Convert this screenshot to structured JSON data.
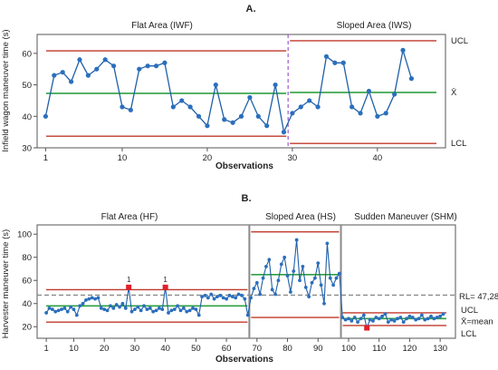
{
  "chart_data": [
    {
      "type": "line",
      "title": "A.",
      "xlabel": "Observations",
      "ylabel": "Infield wagon maneuver time (s)",
      "xlim": [
        0,
        48
      ],
      "ylim": [
        30,
        66
      ],
      "xticks": [
        1,
        10,
        20,
        30,
        40
      ],
      "yticks": [
        30,
        40,
        50,
        60
      ],
      "regions": [
        {
          "label": "Flat Area (IWF)",
          "x_start": 0,
          "x_end": 29.5,
          "ucl": 60.8,
          "center": 47.3,
          "lcl": 33.7
        },
        {
          "label": "Sloped Area (IWS)",
          "x_start": 29.5,
          "x_end": 48,
          "ucl": 64.0,
          "center": 47.6,
          "lcl": 31.4
        }
      ],
      "divider_x": 29.5,
      "limit_labels": {
        "ucl": "UCL",
        "center": "X̄",
        "lcl": "LCL"
      },
      "series": [
        {
          "x": [
            1,
            2,
            3,
            4,
            5,
            6,
            7,
            8,
            9,
            10,
            11,
            12,
            13,
            14,
            15,
            16,
            17,
            18,
            19,
            20,
            21,
            22,
            23,
            24,
            25,
            26,
            27,
            28,
            29,
            30,
            31,
            32,
            33,
            34,
            35,
            36,
            37,
            38,
            39,
            40,
            41,
            42,
            43,
            44
          ],
          "values": [
            40,
            53,
            54,
            51,
            58,
            53,
            55,
            58,
            56,
            43,
            42,
            55,
            56,
            56,
            57,
            43,
            45,
            43,
            40,
            37,
            50,
            39,
            38,
            40,
            46,
            40,
            37,
            50,
            35,
            41,
            43,
            45,
            43,
            59,
            57,
            57,
            43,
            41,
            48,
            40,
            41,
            47,
            61,
            52
          ]
        }
      ]
    },
    {
      "type": "line",
      "title": "B.",
      "xlabel": "Observations",
      "ylabel": "Harvester maneuver time (s)",
      "xlim": [
        -2,
        135
      ],
      "ylim": [
        10,
        108
      ],
      "xticks": [
        1,
        10,
        20,
        30,
        40,
        50,
        60,
        70,
        80,
        90,
        100,
        110,
        120,
        130
      ],
      "yticks": [
        20,
        40,
        60,
        80,
        100
      ],
      "regions": [
        {
          "label": "Flat Area (HF)",
          "x_start": -2,
          "x_end": 67.5,
          "ucl": 52,
          "center": 38,
          "lcl": 24
        },
        {
          "label": "Sloped Area (HS)",
          "x_start": 67.5,
          "x_end": 97.5,
          "ucl": 102,
          "center": 65,
          "lcl": 28
        },
        {
          "label": "Sudden Maneuver (SHM)",
          "x_start": 97.5,
          "x_end": 135,
          "ucl": 32,
          "center": 27,
          "lcl": 21
        }
      ],
      "dividers_x": [
        67.5,
        97.5
      ],
      "reference_line": {
        "label": "RL= 47,28",
        "value": 47.28
      },
      "limit_labels": {
        "ucl": "UCL",
        "center": "X̄=mean",
        "lcl": "LCL"
      },
      "flags": [
        {
          "x": 28,
          "y": 54,
          "label": "1"
        },
        {
          "x": 40,
          "y": 54,
          "label": "1"
        },
        {
          "x": 106,
          "y": 19,
          "label": ""
        }
      ],
      "series": [
        {
          "x": [
            1,
            2,
            3,
            4,
            5,
            6,
            7,
            8,
            9,
            10,
            11,
            12,
            13,
            14,
            15,
            16,
            17,
            18,
            19,
            20,
            21,
            22,
            23,
            24,
            25,
            26,
            27,
            28,
            29,
            30,
            31,
            32,
            33,
            34,
            35,
            36,
            37,
            38,
            39,
            40,
            41,
            42,
            43,
            44,
            45,
            46,
            47,
            48,
            49,
            50,
            51,
            52,
            53,
            54,
            55,
            56,
            57,
            58,
            59,
            60,
            61,
            62,
            63,
            64,
            65,
            66,
            67,
            68,
            69,
            70,
            71,
            72,
            73,
            74,
            75,
            76,
            77,
            78,
            79,
            80,
            81,
            82,
            83,
            84,
            85,
            86,
            87,
            88,
            89,
            90,
            91,
            92,
            93,
            94,
            95,
            96,
            97,
            98,
            99,
            100,
            101,
            102,
            103,
            104,
            105,
            106,
            107,
            108,
            109,
            110,
            111,
            112,
            113,
            114,
            115,
            116,
            117,
            118,
            119,
            120,
            121,
            122,
            123,
            124,
            125,
            126,
            127,
            128,
            129,
            130,
            131
          ],
          "values": [
            32,
            36,
            35,
            33,
            34,
            35,
            36,
            33,
            37,
            35,
            30,
            38,
            40,
            43,
            44,
            45,
            44,
            45,
            36,
            35,
            34,
            38,
            36,
            39,
            37,
            40,
            36,
            54,
            33,
            35,
            37,
            34,
            38,
            35,
            36,
            33,
            34,
            36,
            35,
            54,
            32,
            34,
            35,
            38,
            34,
            36,
            33,
            34,
            36,
            35,
            30,
            46,
            47,
            45,
            48,
            44,
            46,
            47,
            45,
            44,
            47,
            46,
            45,
            48,
            47,
            44,
            30,
            45,
            53,
            58,
            48,
            62,
            72,
            78,
            52,
            48,
            60,
            74,
            80,
            64,
            50,
            68,
            95,
            60,
            72,
            54,
            46,
            58,
            62,
            75,
            56,
            40,
            92,
            62,
            56,
            62,
            66,
            28,
            26,
            27,
            25,
            28,
            24,
            27,
            30,
            19,
            26,
            25,
            28,
            27,
            29,
            31,
            24,
            26,
            25,
            27,
            28,
            24,
            27,
            29,
            28,
            26,
            27,
            30,
            26,
            27,
            29,
            27,
            28,
            29,
            31
          ]
        }
      ]
    }
  ]
}
